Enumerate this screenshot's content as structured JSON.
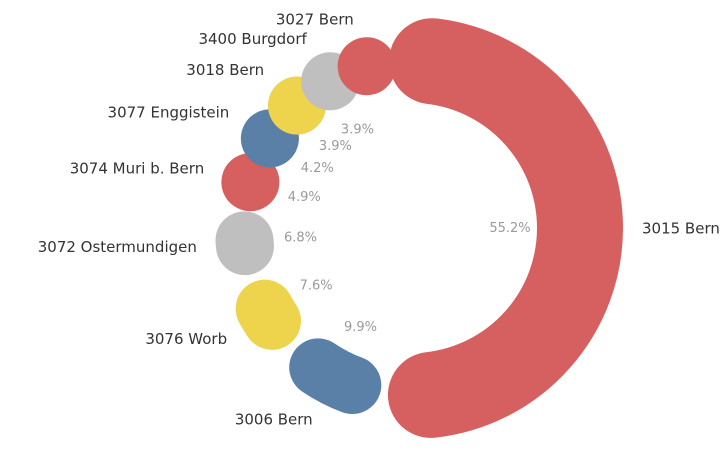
{
  "chart_data": {
    "type": "donut",
    "categories": [
      "3015 Bern",
      "3006 Bern",
      "3076 Worb",
      "3072 Ostermundigen",
      "3074 Muri b. Bern",
      "3077 Enggistein",
      "3018 Bern",
      "3400 Burgdorf",
      "3027 Bern"
    ],
    "values": [
      55.2,
      9.9,
      7.6,
      6.8,
      4.9,
      4.2,
      3.9,
      3.9,
      3.6
    ],
    "value_labels": [
      "55.2%",
      "9.9%",
      "7.6%",
      "6.8%",
      "4.9%",
      "4.2%",
      "3.9%",
      "3.9%",
      null
    ],
    "colors": [
      "#d65f5f",
      "#5b80a8",
      "#edd44c",
      "#bfbfbf",
      "#d65f5f",
      "#5b80a8",
      "#edd44c",
      "#bfbfbf",
      "#d65f5f"
    ]
  }
}
